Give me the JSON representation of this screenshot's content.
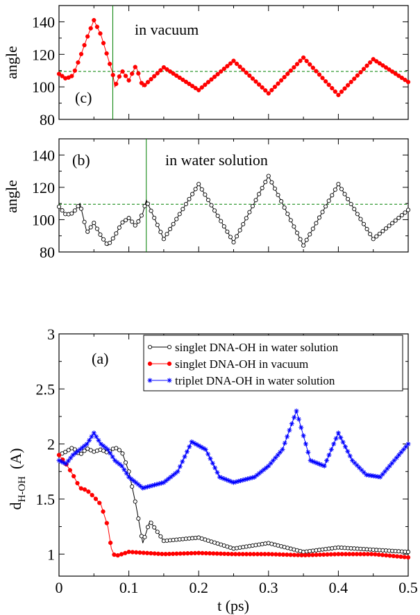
{
  "chart_data": [
    {
      "panel_label": "(c)",
      "type": "line",
      "annotation": "in vacuum",
      "xlabel": "",
      "ylabel": "angle",
      "xlim": [
        0,
        0.5
      ],
      "ylim": [
        80,
        150
      ],
      "yticks": [
        80,
        100,
        120,
        140
      ],
      "reference_line": 109.5,
      "vertical_marker_x": 0.077,
      "series": [
        {
          "color": "#ff0000",
          "marker": "filled-circle",
          "x": [
            0.0,
            0.01,
            0.02,
            0.03,
            0.04,
            0.05,
            0.06,
            0.07,
            0.077,
            0.08,
            0.09,
            0.1,
            0.11,
            0.12,
            0.15,
            0.2,
            0.25,
            0.3,
            0.35,
            0.4,
            0.45,
            0.5
          ],
          "values": [
            108,
            105,
            107,
            118,
            130,
            141,
            132,
            118,
            108,
            100,
            110,
            104,
            113,
            100,
            112,
            98,
            116,
            96,
            118,
            95,
            117,
            103
          ]
        }
      ]
    },
    {
      "panel_label": "(b)",
      "type": "line",
      "annotation": "in water solution",
      "xlabel": "",
      "ylabel": "angle",
      "xlim": [
        0,
        0.5
      ],
      "ylim": [
        80,
        150
      ],
      "yticks": [
        80,
        100,
        120,
        140
      ],
      "reference_line": 109.5,
      "vertical_marker_x": 0.125,
      "series": [
        {
          "color": "#000000",
          "marker": "open-circle",
          "x": [
            0.0,
            0.01,
            0.02,
            0.03,
            0.04,
            0.05,
            0.06,
            0.07,
            0.08,
            0.09,
            0.1,
            0.11,
            0.12,
            0.125,
            0.15,
            0.2,
            0.25,
            0.3,
            0.35,
            0.4,
            0.45,
            0.5
          ],
          "values": [
            108,
            103,
            104,
            110,
            92,
            98,
            90,
            84,
            90,
            98,
            101,
            96,
            104,
            112,
            88,
            122,
            86,
            127,
            84,
            122,
            88,
            106
          ]
        }
      ]
    },
    {
      "panel_label": "(a)",
      "type": "line",
      "xlabel": "t (ps)",
      "ylabel_main": "d",
      "ylabel_sub": "H-OH",
      "ylabel_unit": "(A)",
      "xlim": [
        0,
        0.5
      ],
      "ylim": [
        0.8,
        3.0
      ],
      "xticks": [
        0,
        0.1,
        0.2,
        0.3,
        0.4,
        0.5
      ],
      "yticks": [
        1,
        1.5,
        2,
        2.5,
        3
      ],
      "legend_position": "top-right",
      "series": [
        {
          "name": "singlet DNA-OH in water solution",
          "color": "#000000",
          "marker": "open-circle",
          "x": [
            0.0,
            0.01,
            0.02,
            0.03,
            0.04,
            0.05,
            0.06,
            0.07,
            0.08,
            0.09,
            0.1,
            0.11,
            0.12,
            0.13,
            0.15,
            0.2,
            0.25,
            0.3,
            0.35,
            0.4,
            0.45,
            0.5
          ],
          "values": [
            1.9,
            1.93,
            1.97,
            1.9,
            1.96,
            1.93,
            1.95,
            1.92,
            1.97,
            1.93,
            1.75,
            1.45,
            1.1,
            1.3,
            1.12,
            1.15,
            1.05,
            1.1,
            1.02,
            1.06,
            1.04,
            1.02
          ]
        },
        {
          "name": "singlet DNA-OH in vacuum",
          "color": "#ff0000",
          "marker": "filled-circle",
          "x": [
            0.0,
            0.01,
            0.02,
            0.03,
            0.04,
            0.05,
            0.06,
            0.07,
            0.075,
            0.08,
            0.1,
            0.15,
            0.2,
            0.25,
            0.3,
            0.35,
            0.4,
            0.45,
            0.5
          ],
          "values": [
            1.9,
            1.82,
            1.72,
            1.6,
            1.58,
            1.52,
            1.45,
            1.25,
            1.05,
            0.98,
            1.02,
            1.0,
            1.01,
            1.0,
            1.0,
            0.99,
            1.0,
            1.0,
            0.97
          ]
        },
        {
          "name": "triplet DNA-OH in water solution",
          "color": "#0000ff",
          "marker": "asterisk",
          "x": [
            0.0,
            0.01,
            0.02,
            0.03,
            0.04,
            0.05,
            0.06,
            0.07,
            0.08,
            0.09,
            0.1,
            0.12,
            0.15,
            0.17,
            0.19,
            0.21,
            0.23,
            0.25,
            0.28,
            0.3,
            0.32,
            0.34,
            0.36,
            0.38,
            0.4,
            0.42,
            0.44,
            0.46,
            0.48,
            0.5
          ],
          "values": [
            1.85,
            1.82,
            1.9,
            1.95,
            2.0,
            2.1,
            2.0,
            1.95,
            1.85,
            1.8,
            1.7,
            1.6,
            1.65,
            1.75,
            2.02,
            1.95,
            1.7,
            1.65,
            1.7,
            1.8,
            1.95,
            2.3,
            1.85,
            1.8,
            2.1,
            1.85,
            1.72,
            1.7,
            1.85,
            2.0
          ]
        }
      ]
    }
  ]
}
